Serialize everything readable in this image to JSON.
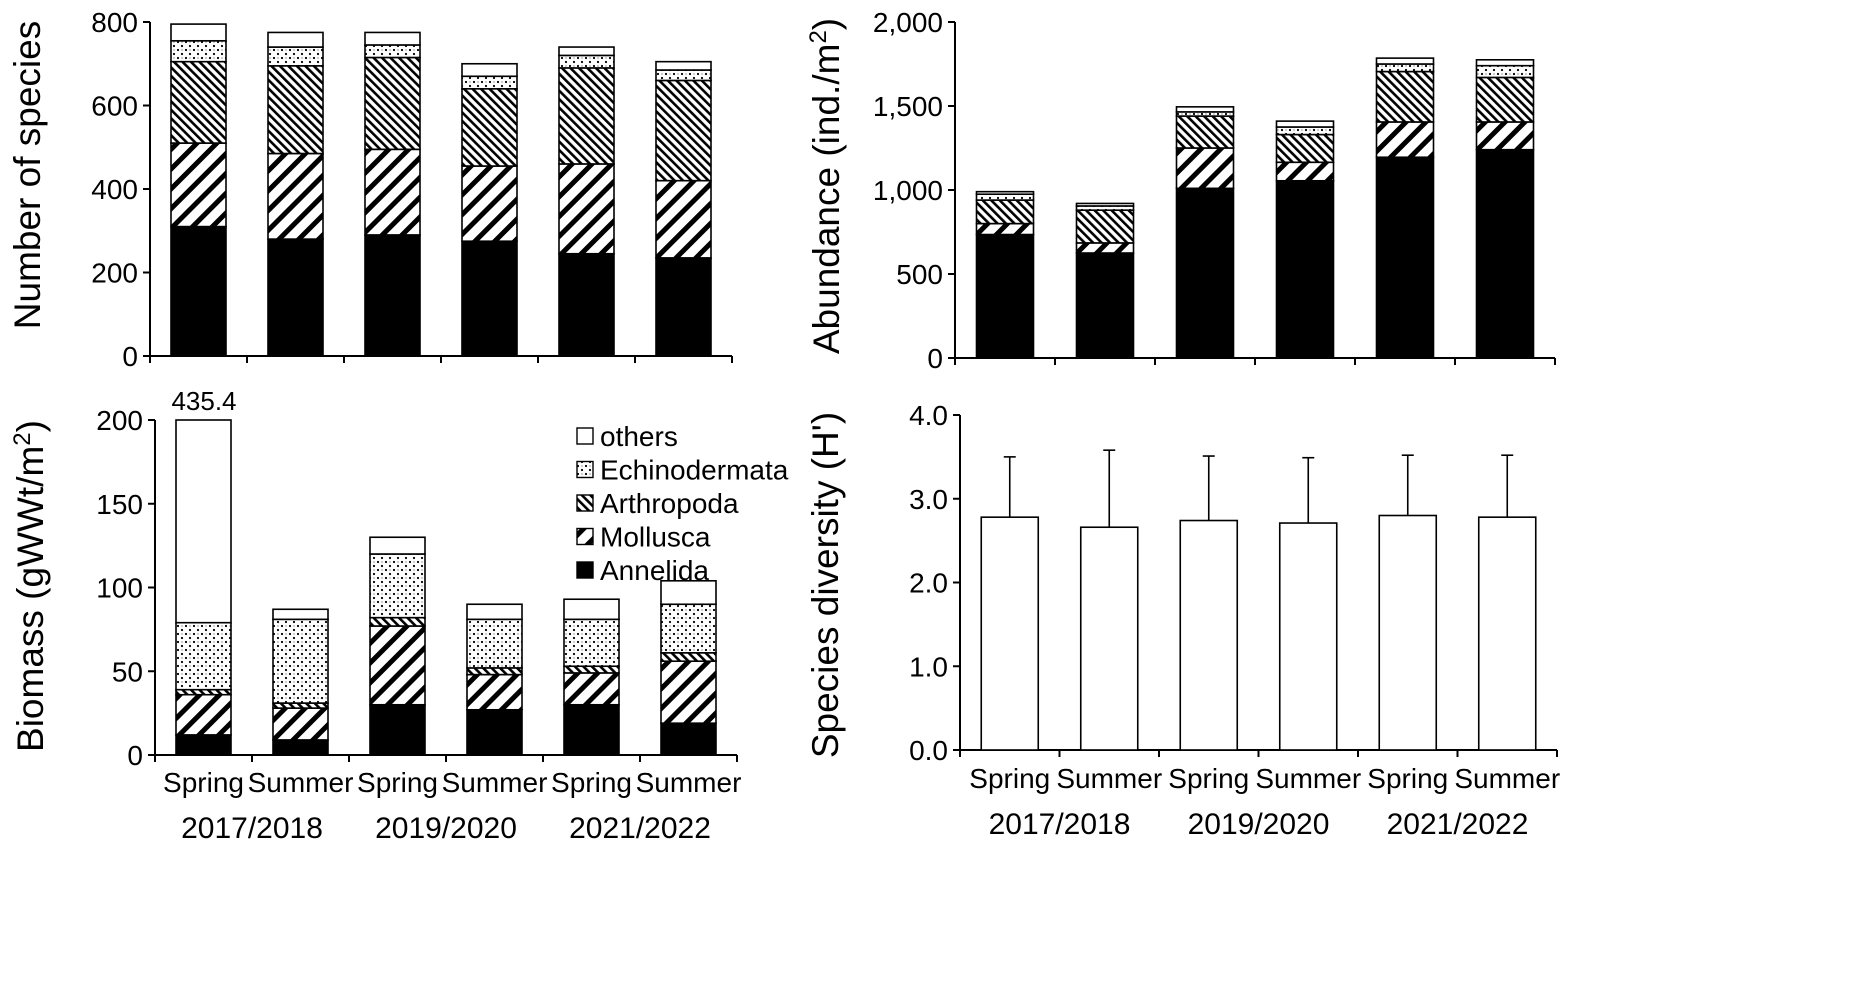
{
  "colors": {
    "Annelida": "#000000",
    "Mollusca": "hatch-diagonal-wide",
    "Arthropoda": "hatch-diagonal-dense",
    "Echinodermata": "dotted",
    "others": "#ffffff"
  },
  "legend": [
    "others",
    "Echinodermata",
    "Arthropoda",
    "Mollusca",
    "Annelida"
  ],
  "chart_data": [
    {
      "id": "species",
      "type": "bar",
      "stacked": true,
      "ylabel": "Number of species",
      "ylim": [
        0,
        800
      ],
      "yticks": [
        "0",
        "200",
        "400",
        "600",
        "800"
      ],
      "categories": [
        "Spring",
        "Summer",
        "Spring",
        "Summer",
        "Spring",
        "Summer"
      ],
      "groups": [
        "2017/2018",
        "2019/2020",
        "2021/2022"
      ],
      "series": [
        {
          "name": "Annelida",
          "values": [
            310,
            280,
            290,
            275,
            245,
            235
          ]
        },
        {
          "name": "Mollusca",
          "values": [
            200,
            205,
            205,
            180,
            215,
            185
          ]
        },
        {
          "name": "Arthropoda",
          "values": [
            195,
            210,
            220,
            185,
            230,
            240
          ]
        },
        {
          "name": "Echinodermata",
          "values": [
            50,
            45,
            30,
            30,
            30,
            25
          ]
        },
        {
          "name": "others",
          "values": [
            40,
            35,
            30,
            30,
            20,
            20
          ]
        }
      ]
    },
    {
      "id": "abundance",
      "type": "bar",
      "stacked": true,
      "ylabel": "Abundance (ind./m²)",
      "ylim": [
        0,
        2000
      ],
      "yticks": [
        "0",
        "500",
        "1,000",
        "1,500",
        "2,000"
      ],
      "categories": [
        "Spring",
        "Summer",
        "Spring",
        "Summer",
        "Spring",
        "Summer"
      ],
      "groups": [
        "2017/2018",
        "2019/2020",
        "2021/2022"
      ],
      "series": [
        {
          "name": "Annelida",
          "values": [
            735,
            625,
            1010,
            1055,
            1195,
            1240
          ]
        },
        {
          "name": "Mollusca",
          "values": [
            65,
            60,
            240,
            110,
            210,
            165
          ]
        },
        {
          "name": "Arthropoda",
          "values": [
            140,
            195,
            190,
            165,
            300,
            265
          ]
        },
        {
          "name": "Echinodermata",
          "values": [
            35,
            25,
            25,
            45,
            45,
            70
          ]
        },
        {
          "name": "others",
          "values": [
            15,
            15,
            30,
            35,
            35,
            35
          ]
        }
      ]
    },
    {
      "id": "biomass",
      "type": "bar",
      "stacked": true,
      "ylabel": "Biomass (gWWt/m²)",
      "ylim": [
        0,
        200
      ],
      "yticks": [
        "0",
        "50",
        "100",
        "150",
        "200"
      ],
      "categories": [
        "Spring",
        "Summer",
        "Spring",
        "Summer",
        "Spring",
        "Summer"
      ],
      "groups": [
        "2017/2018",
        "2019/2020",
        "2021/2022"
      ],
      "annotation": "435.4",
      "series": [
        {
          "name": "Annelida",
          "values": [
            12,
            9,
            30,
            27,
            30,
            19
          ]
        },
        {
          "name": "Mollusca",
          "values": [
            24,
            19,
            47,
            21,
            19,
            37
          ]
        },
        {
          "name": "Arthropoda",
          "values": [
            3,
            3,
            5,
            4,
            4,
            5
          ]
        },
        {
          "name": "Echinodermata",
          "values": [
            40,
            50,
            38,
            29,
            28,
            29
          ]
        },
        {
          "name": "others",
          "values": [
            121,
            6,
            10,
            9,
            12,
            14
          ]
        }
      ]
    },
    {
      "id": "diversity",
      "type": "bar",
      "ylabel": "Species diversity (H')",
      "ylim": [
        0,
        4
      ],
      "yticks": [
        "0.0",
        "1.0",
        "2.0",
        "3.0",
        "4.0"
      ],
      "categories": [
        "Spring",
        "Summer",
        "Spring",
        "Summer",
        "Spring",
        "Summer"
      ],
      "groups": [
        "2017/2018",
        "2019/2020",
        "2021/2022"
      ],
      "values": [
        2.78,
        2.66,
        2.74,
        2.71,
        2.8,
        2.78
      ],
      "errors": [
        0.72,
        0.92,
        0.77,
        0.78,
        0.72,
        0.74
      ]
    }
  ]
}
